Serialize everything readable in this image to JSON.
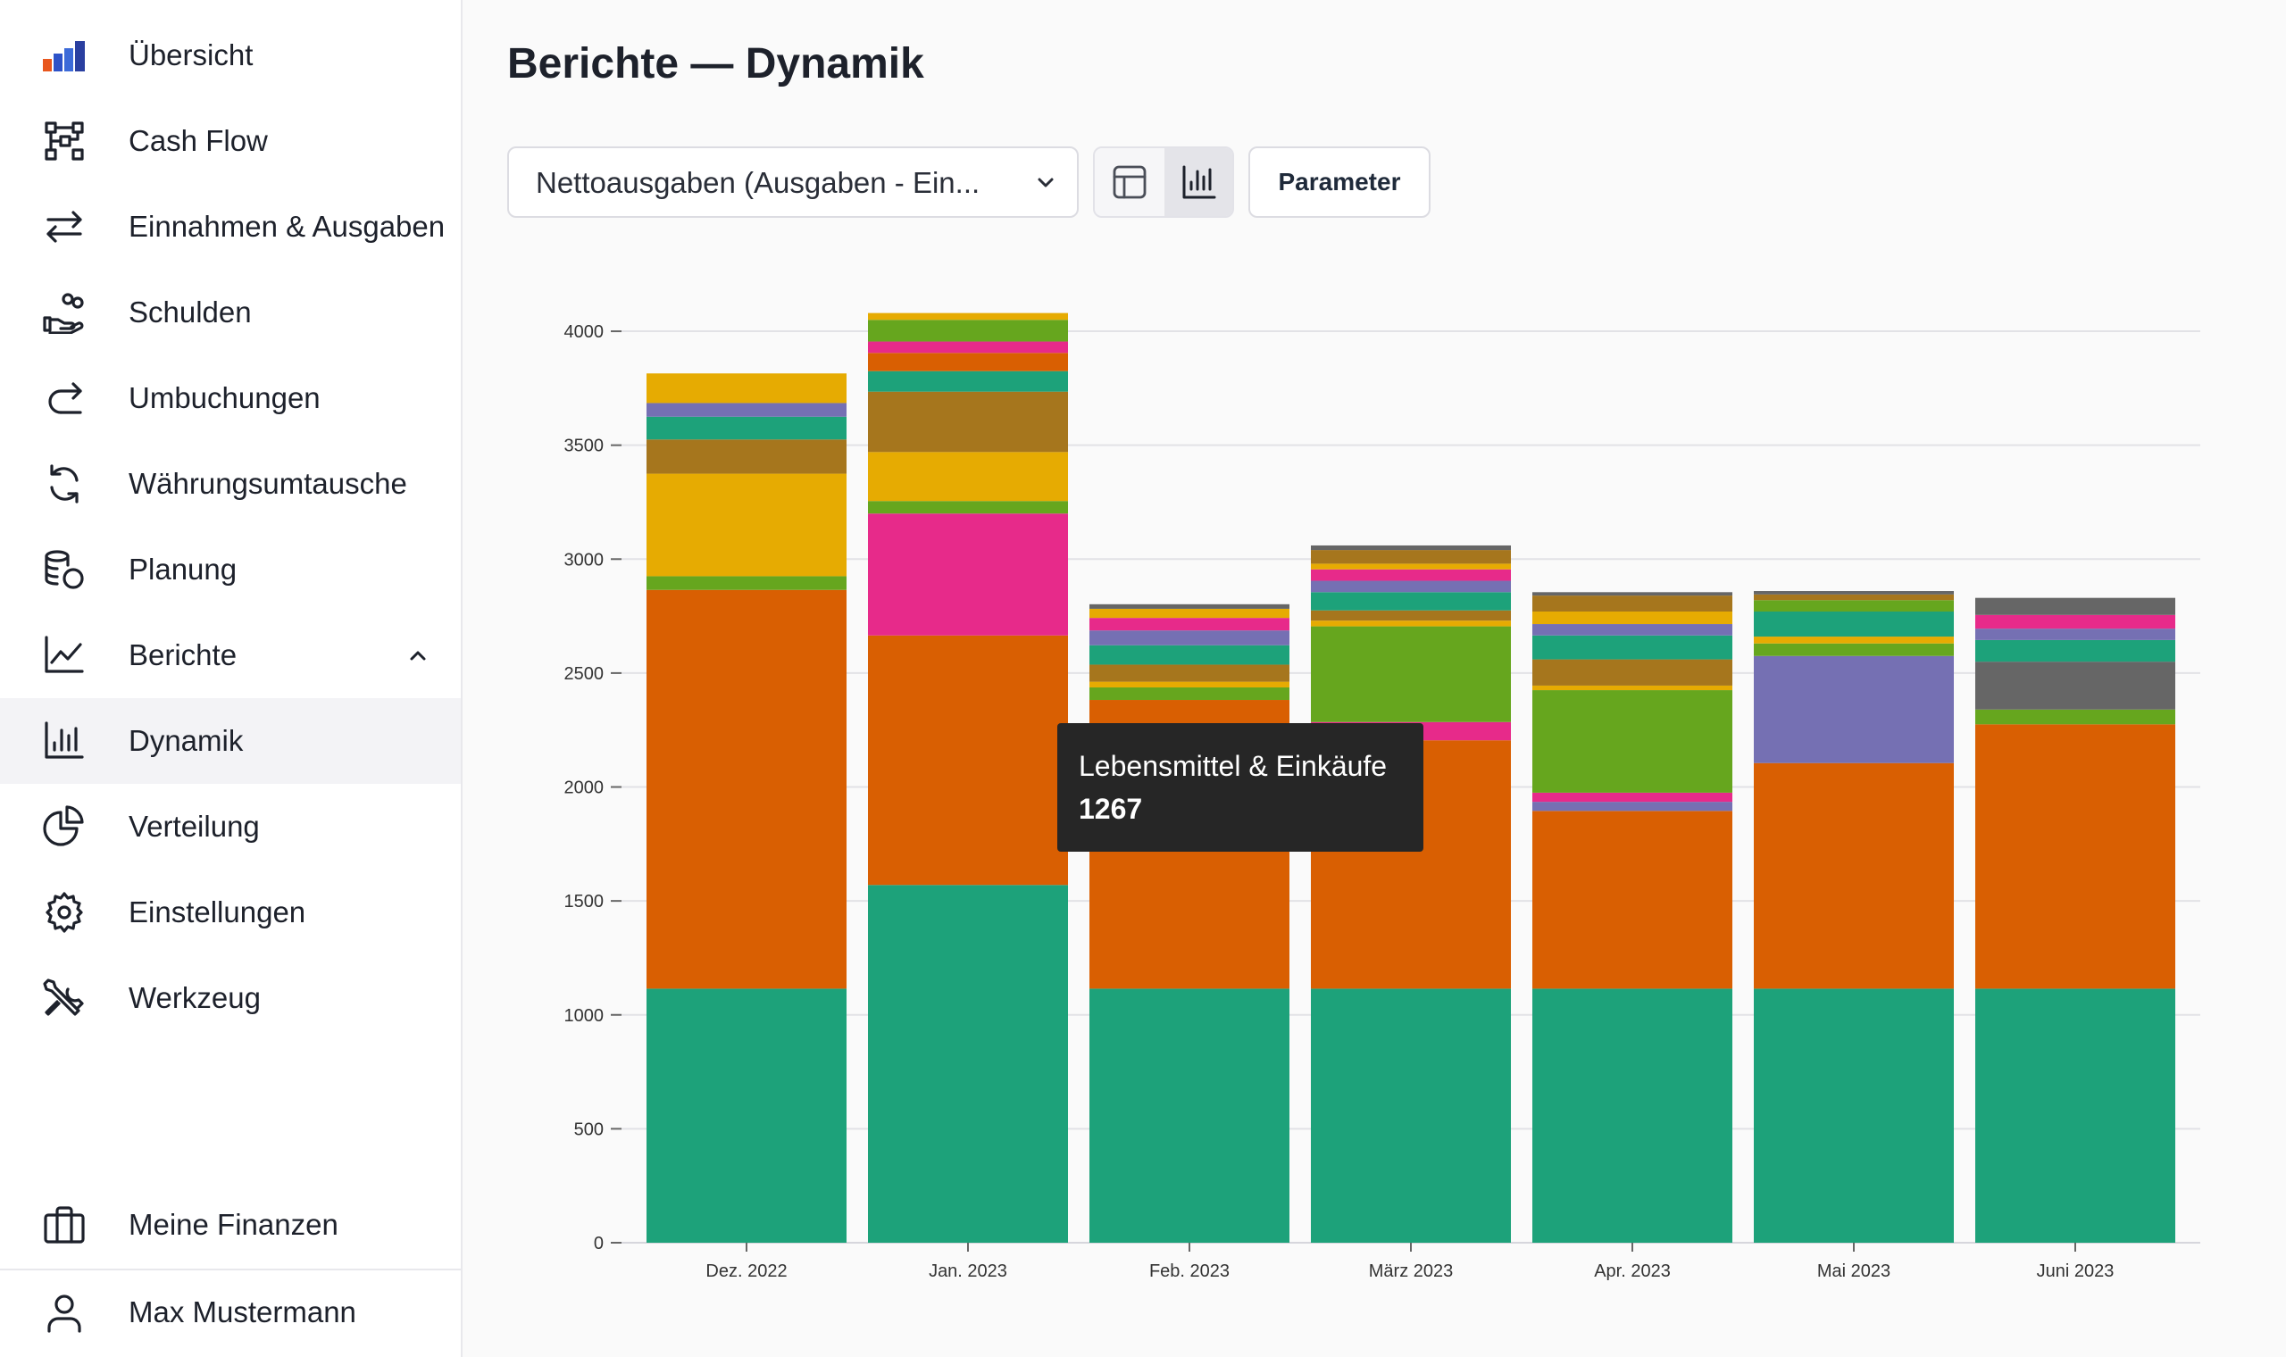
{
  "sidebar": {
    "items": [
      {
        "name": "uebersicht",
        "label": "Übersicht",
        "icon": "bar-chart-logo-icon"
      },
      {
        "name": "cash-flow",
        "label": "Cash Flow",
        "icon": "flow-diagram-icon"
      },
      {
        "name": "einnahmen-ausgaben",
        "label": "Einnahmen & Ausgaben",
        "icon": "arrows-left-right-icon"
      },
      {
        "name": "schulden",
        "label": "Schulden",
        "icon": "hand-coins-icon"
      },
      {
        "name": "umbuchungen",
        "label": "Umbuchungen",
        "icon": "redo-arrow-icon"
      },
      {
        "name": "waehrungsumtausche",
        "label": "Währungsumtausche",
        "icon": "refresh-icon"
      },
      {
        "name": "planung",
        "label": "Planung",
        "icon": "coins-stack-icon"
      },
      {
        "name": "berichte",
        "label": "Berichte",
        "icon": "line-chart-icon"
      },
      {
        "name": "dynamik",
        "label": "Dynamik",
        "icon": "bar-chart-icon"
      },
      {
        "name": "verteilung",
        "label": "Verteilung",
        "icon": "pie-chart-icon"
      },
      {
        "name": "einstellungen",
        "label": "Einstellungen",
        "icon": "gear-icon"
      },
      {
        "name": "werkzeug",
        "label": "Werkzeug",
        "icon": "tools-icon"
      }
    ],
    "active": "Dynamik",
    "expanded": "Berichte",
    "bottom": {
      "finances_label": "Meine Finanzen",
      "finances_icon": "briefcase-icon",
      "user_label": "Max Mustermann",
      "user_icon": "user-icon"
    }
  },
  "header": {
    "title": "Berichte — Dynamik"
  },
  "controls": {
    "metric_select": {
      "value": "Nettoausgaben (Ausgaben - Ein...",
      "icon": "chevron-down-icon"
    },
    "view_toggle": {
      "table_icon": "table-icon",
      "chart_icon": "bar-chart-icon",
      "selected": "chart"
    },
    "parameter_button": "Parameter"
  },
  "tooltip": {
    "label": "Lebensmittel & Einkäufe",
    "value": "1267"
  },
  "colors": {
    "teal": "#1da27a",
    "orange": "#d95f02",
    "pink": "#e72a8a",
    "green": "#66a61e",
    "yellow": "#e6ab02",
    "brown": "#a6761d",
    "purple": "#7570b3",
    "gray": "#666666",
    "tooltip_bg": "#262626"
  },
  "chart_data": {
    "type": "bar",
    "stacked": true,
    "categories": [
      "Dez. 2022",
      "Jan. 2023",
      "Feb. 2023",
      "März 2023",
      "Apr. 2023",
      "Mai 2023",
      "Juni 2023"
    ],
    "ylim": [
      0,
      4200
    ],
    "yticks": [
      0,
      500,
      1000,
      1500,
      2000,
      2500,
      3000,
      3500,
      4000
    ],
    "grid": true,
    "legend": "none",
    "stacks": [
      [
        [
          "#1da27a",
          1115
        ],
        [
          "#d95f02",
          1750
        ],
        [
          "#66a61e",
          60
        ],
        [
          "#e6ab02",
          450
        ],
        [
          "#a6761d",
          150
        ],
        [
          "#1da27a",
          100
        ],
        [
          "#7570b3",
          60
        ],
        [
          "#e6ab02",
          130
        ]
      ],
      [
        [
          "#1da27a",
          1570
        ],
        [
          "#d95f02",
          1095
        ],
        [
          "#e72a8a",
          535
        ],
        [
          "#66a61e",
          55
        ],
        [
          "#e6ab02",
          215
        ],
        [
          "#a6761d",
          265
        ],
        [
          "#1da27a",
          90
        ],
        [
          "#d95f02",
          80
        ],
        [
          "#e72a8a",
          50
        ],
        [
          "#66a61e",
          95
        ],
        [
          "#e6ab02",
          30
        ]
      ],
      [
        [
          "#1da27a",
          1115
        ],
        [
          "#d95f02",
          1267
        ],
        [
          "#66a61e",
          55
        ],
        [
          "#e6ab02",
          25
        ],
        [
          "#a6761d",
          75
        ],
        [
          "#1da27a",
          85
        ],
        [
          "#7570b3",
          65
        ],
        [
          "#e72a8a",
          55
        ],
        [
          "#e6ab02",
          40
        ],
        [
          "#666666",
          20
        ]
      ],
      [
        [
          "#1da27a",
          1115
        ],
        [
          "#d95f02",
          1090
        ],
        [
          "#e72a8a",
          80
        ],
        [
          "#66a61e",
          420
        ],
        [
          "#e6ab02",
          25
        ],
        [
          "#a6761d",
          45
        ],
        [
          "#1da27a",
          80
        ],
        [
          "#7570b3",
          50
        ],
        [
          "#e72a8a",
          50
        ],
        [
          "#e6ab02",
          25
        ],
        [
          "#a6761d",
          60
        ],
        [
          "#666666",
          20
        ]
      ],
      [
        [
          "#1da27a",
          1115
        ],
        [
          "#d95f02",
          780
        ],
        [
          "#7570b3",
          40
        ],
        [
          "#e72a8a",
          40
        ],
        [
          "#66a61e",
          450
        ],
        [
          "#e6ab02",
          20
        ],
        [
          "#a6761d",
          115
        ],
        [
          "#1da27a",
          105
        ],
        [
          "#7570b3",
          50
        ],
        [
          "#e6ab02",
          55
        ],
        [
          "#a6761d",
          70
        ],
        [
          "#666666",
          15
        ]
      ],
      [
        [
          "#1da27a",
          1115
        ],
        [
          "#d95f02",
          990
        ],
        [
          "#7570b3",
          470
        ],
        [
          "#66a61e",
          55
        ],
        [
          "#e6ab02",
          30
        ],
        [
          "#1da27a",
          110
        ],
        [
          "#66a61e",
          50
        ],
        [
          "#a6761d",
          25
        ],
        [
          "#666666",
          15
        ]
      ],
      [
        [
          "#1da27a",
          1115
        ],
        [
          "#d95f02",
          1160
        ],
        [
          "#66a61e",
          65
        ],
        [
          "#666666",
          210
        ],
        [
          "#1da27a",
          95
        ],
        [
          "#7570b3",
          50
        ],
        [
          "#e72a8a",
          60
        ],
        [
          "#666666",
          75
        ]
      ]
    ]
  }
}
